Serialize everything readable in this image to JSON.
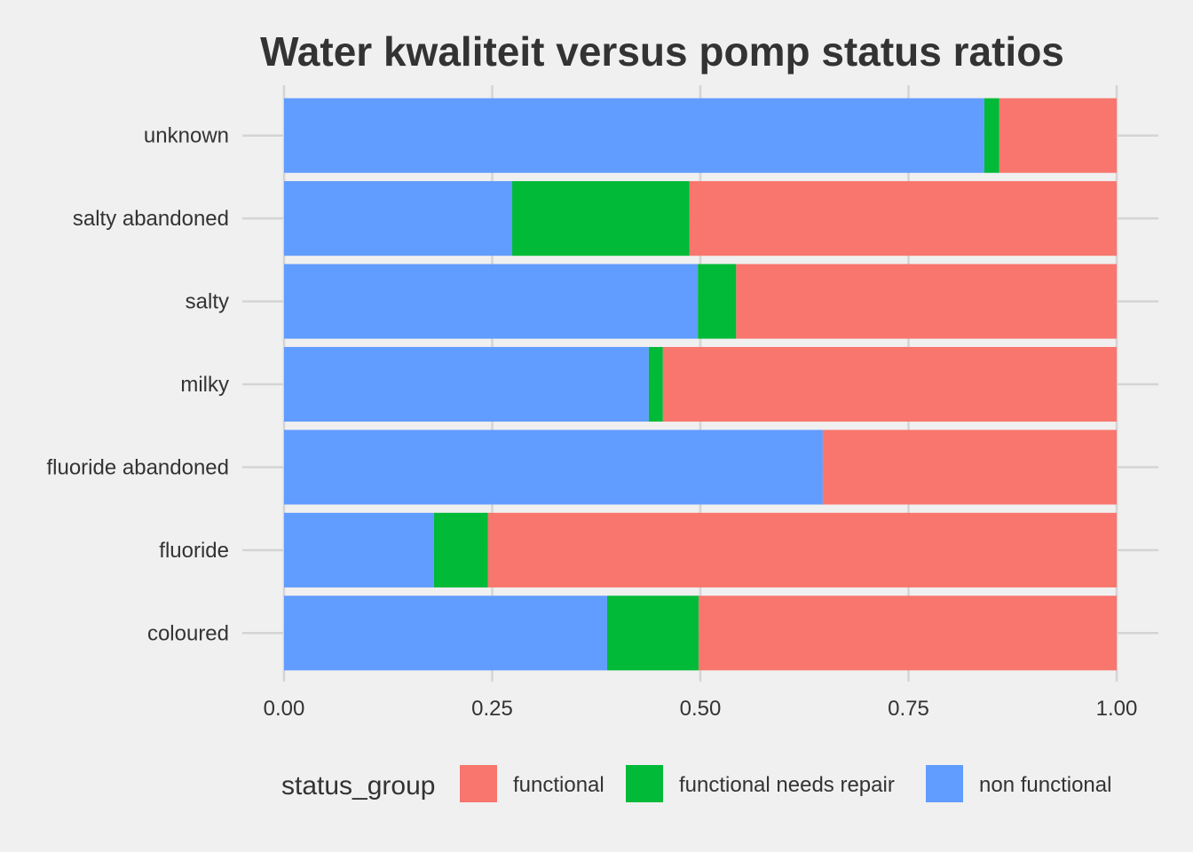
{
  "chart_data": {
    "type": "bar",
    "orientation": "horizontal",
    "stacked": true,
    "title": "Water kwaliteit versus pomp status ratios",
    "xlabel": "",
    "ylabel": "",
    "xlim": [
      0,
      1
    ],
    "x_ticks": [
      "0.00",
      "0.25",
      "0.50",
      "0.75",
      "1.00"
    ],
    "categories": [
      "unknown",
      "salty abandoned",
      "salty",
      "milky",
      "fluoride abandoned",
      "fluoride",
      "coloured"
    ],
    "series": [
      {
        "name": "non functional",
        "color": "#619cff",
        "values": [
          0.841,
          0.274,
          0.497,
          0.438,
          0.647,
          0.18,
          0.388
        ]
      },
      {
        "name": "functional needs repair",
        "color": "#00ba38",
        "values": [
          0.018,
          0.213,
          0.046,
          0.017,
          0.0,
          0.065,
          0.11
        ]
      },
      {
        "name": "functional",
        "color": "#f8766d",
        "values": [
          0.141,
          0.513,
          0.457,
          0.545,
          0.353,
          0.755,
          0.502
        ]
      }
    ],
    "legend": {
      "title": "status_group",
      "position": "bottom",
      "entries": [
        {
          "label": "functional",
          "color": "#f8766d"
        },
        {
          "label": "functional needs repair",
          "color": "#00ba38"
        },
        {
          "label": "non functional",
          "color": "#619cff"
        }
      ]
    },
    "grid": true
  }
}
